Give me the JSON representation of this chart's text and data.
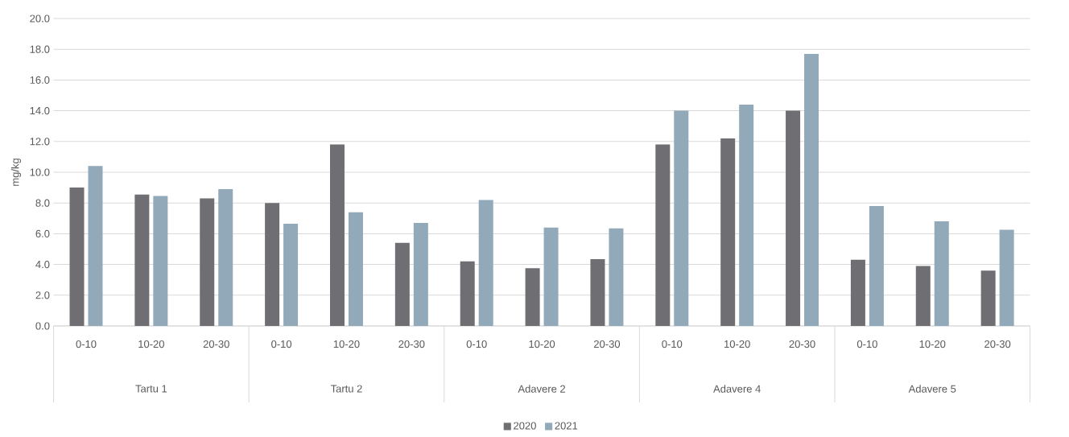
{
  "chart_data": {
    "type": "bar",
    "ylabel": "mg/kg",
    "categories": [
      "0-10",
      "10-20",
      "20-30",
      "0-10",
      "10-20",
      "20-30",
      "0-10",
      "10-20",
      "20-30",
      "0-10",
      "10-20",
      "20-30",
      "0-10",
      "10-20",
      "20-30"
    ],
    "annotations": [
      "Tartu 1",
      "Tartu 2",
      "Adavere 2",
      "Adavere 4",
      "Adavere 5"
    ],
    "series": [
      {
        "name": "2020",
        "color": "#6f6e73",
        "values": [
          9.0,
          8.55,
          8.3,
          8.0,
          11.8,
          5.4,
          4.2,
          3.75,
          4.35,
          11.8,
          12.2,
          14.0,
          4.3,
          3.9,
          3.6
        ]
      },
      {
        "name": "2021",
        "color": "#92a9b9",
        "values": [
          10.4,
          8.45,
          8.9,
          6.65,
          7.4,
          6.7,
          8.2,
          6.4,
          6.35,
          14.0,
          14.4,
          17.7,
          7.8,
          6.8,
          6.25
        ]
      }
    ],
    "ylim": [
      0,
      20
    ],
    "yticks": [
      {
        "value": 0,
        "label": "0.0"
      },
      {
        "value": 2,
        "label": "2.0"
      },
      {
        "value": 4,
        "label": "4.0"
      },
      {
        "value": 6,
        "label": "6.0"
      },
      {
        "value": 8,
        "label": "8.0"
      },
      {
        "value": 10,
        "label": "10.0"
      },
      {
        "value": 12,
        "label": "12.0"
      },
      {
        "value": 14,
        "label": "14.0"
      },
      {
        "value": 16,
        "label": "16.0"
      },
      {
        "value": 18,
        "label": "18.0"
      },
      {
        "value": 20,
        "label": "20.0"
      }
    ],
    "grid": "y",
    "legend": "bottom"
  }
}
